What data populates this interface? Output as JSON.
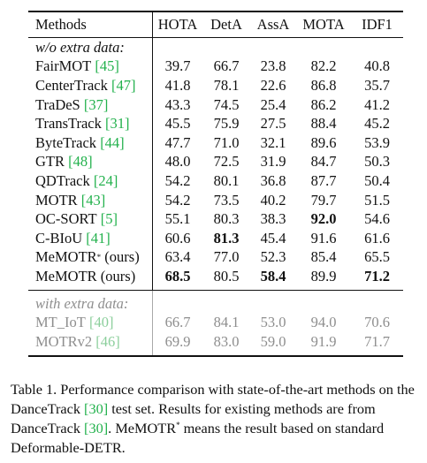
{
  "table": {
    "headers": [
      "Methods",
      "HOTA",
      "DetA",
      "AssA",
      "MOTA",
      "IDF1"
    ],
    "section_no_extra": "w/o extra data:",
    "rows": [
      {
        "name": "FairMOT",
        "ref": "[45]",
        "sup": "",
        "values": [
          "39.7",
          "66.7",
          "23.8",
          "82.2",
          "40.8"
        ],
        "bold": []
      },
      {
        "name": "CenterTrack",
        "ref": "[47]",
        "sup": "",
        "values": [
          "41.8",
          "78.1",
          "22.6",
          "86.8",
          "35.7"
        ],
        "bold": []
      },
      {
        "name": "TraDeS",
        "ref": "[37]",
        "sup": "",
        "values": [
          "43.3",
          "74.5",
          "25.4",
          "86.2",
          "41.2"
        ],
        "bold": []
      },
      {
        "name": "TransTrack",
        "ref": "[31]",
        "sup": "",
        "values": [
          "45.5",
          "75.9",
          "27.5",
          "88.4",
          "45.2"
        ],
        "bold": []
      },
      {
        "name": "ByteTrack",
        "ref": "[44]",
        "sup": "",
        "values": [
          "47.7",
          "71.0",
          "32.1",
          "89.6",
          "53.9"
        ],
        "bold": []
      },
      {
        "name": "GTR",
        "ref": "[48]",
        "sup": "",
        "values": [
          "48.0",
          "72.5",
          "31.9",
          "84.7",
          "50.3"
        ],
        "bold": []
      },
      {
        "name": "QDTrack",
        "ref": "[24]",
        "sup": "",
        "values": [
          "54.2",
          "80.1",
          "36.8",
          "87.7",
          "50.4"
        ],
        "bold": []
      },
      {
        "name": "MOTR",
        "ref": "[43]",
        "sup": "",
        "values": [
          "54.2",
          "73.5",
          "40.2",
          "79.7",
          "51.5"
        ],
        "bold": []
      },
      {
        "name": "OC-SORT",
        "ref": "[5]",
        "sup": "",
        "values": [
          "55.1",
          "80.3",
          "38.3",
          "92.0",
          "54.6"
        ],
        "bold": [
          3
        ]
      },
      {
        "name": "C-BIoU",
        "ref": "[41]",
        "sup": "",
        "values": [
          "60.6",
          "81.3",
          "45.4",
          "91.6",
          "61.6"
        ],
        "bold": [
          1
        ]
      },
      {
        "name": "MeMOTR",
        "ref": "(ours)",
        "sup": "*",
        "values": [
          "63.4",
          "77.0",
          "52.3",
          "85.4",
          "65.5"
        ],
        "bold": []
      },
      {
        "name": "MeMOTR",
        "ref": "(ours)",
        "sup": "",
        "values": [
          "68.5",
          "80.5",
          "58.4",
          "89.9",
          "71.2"
        ],
        "bold": [
          0,
          2,
          4
        ]
      }
    ],
    "section_extra": "with extra data:",
    "extra_rows": [
      {
        "name": "MT_IoT",
        "ref": "[40]",
        "values": [
          "66.7",
          "84.1",
          "53.0",
          "94.0",
          "70.6"
        ]
      },
      {
        "name": "MOTRv2",
        "ref": "[46]",
        "values": [
          "69.9",
          "83.0",
          "59.0",
          "91.9",
          "71.7"
        ]
      }
    ]
  },
  "caption": {
    "p1": "Table 1. Performance comparison with state-of-the-art methods on the DanceTrack ",
    "r1": "[30]",
    "p2": " test set. Results for existing methods are from DanceTrack ",
    "r2": "[30]",
    "p3": ". MeMOTR",
    "sup": "*",
    "p4": " means the result based on standard Deformable-DETR."
  },
  "colors": {
    "ref_green": "#22b14c",
    "gray_text": "#8e8e8e"
  }
}
